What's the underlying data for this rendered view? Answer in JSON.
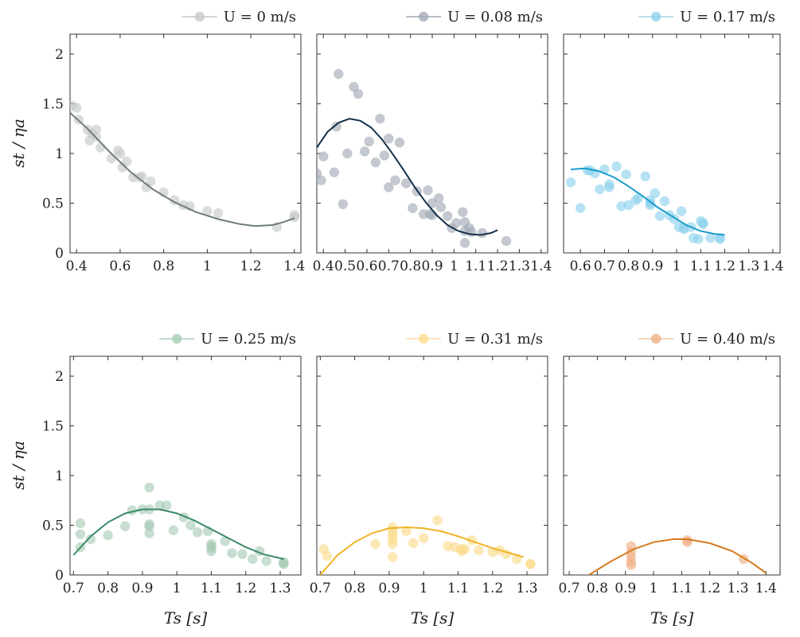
{
  "figure": {
    "ylabel": "st / ηa",
    "xlabel": "Ts [s]"
  },
  "chart_data": [
    {
      "type": "scatter",
      "legend": "U = 0 m/s",
      "color": "#c8cbcb",
      "line_color": "#6f7b7b",
      "xlim": [
        0.37,
        1.43
      ],
      "ylim": [
        0,
        2.2
      ],
      "xticks": [
        "0.4",
        "0.6",
        "0.8",
        "1",
        "1.2",
        "1.4"
      ],
      "xtick_values": [
        0.4,
        0.6,
        0.8,
        1.0,
        1.2,
        1.4
      ],
      "yticks": [
        "0",
        "0.5",
        "1",
        "1.5",
        "2"
      ],
      "ytick_values": [
        0,
        0.5,
        1,
        1.5,
        2
      ],
      "points": [
        [
          0.38,
          1.48
        ],
        [
          0.4,
          1.46
        ],
        [
          0.41,
          1.34
        ],
        [
          0.45,
          1.24
        ],
        [
          0.46,
          1.13
        ],
        [
          0.47,
          1.2
        ],
        [
          0.49,
          1.24
        ],
        [
          0.49,
          1.17
        ],
        [
          0.51,
          1.06
        ],
        [
          0.56,
          0.95
        ],
        [
          0.59,
          1.03
        ],
        [
          0.6,
          1.0
        ],
        [
          0.61,
          0.86
        ],
        [
          0.63,
          0.92
        ],
        [
          0.66,
          0.76
        ],
        [
          0.69,
          0.76
        ],
        [
          0.7,
          0.77
        ],
        [
          0.72,
          0.66
        ],
        [
          0.74,
          0.72
        ],
        [
          0.8,
          0.61
        ],
        [
          0.85,
          0.53
        ],
        [
          0.89,
          0.48
        ],
        [
          0.92,
          0.47
        ],
        [
          1.0,
          0.42
        ],
        [
          1.05,
          0.4
        ],
        [
          1.32,
          0.26
        ],
        [
          1.4,
          0.36
        ],
        [
          1.4,
          0.38
        ]
      ],
      "curve": [
        [
          0.37,
          1.41
        ],
        [
          0.45,
          1.25
        ],
        [
          0.55,
          1.02
        ],
        [
          0.65,
          0.81
        ],
        [
          0.75,
          0.64
        ],
        [
          0.85,
          0.51
        ],
        [
          0.95,
          0.41
        ],
        [
          1.05,
          0.34
        ],
        [
          1.15,
          0.29
        ],
        [
          1.22,
          0.27
        ],
        [
          1.3,
          0.28
        ],
        [
          1.35,
          0.31
        ],
        [
          1.4,
          0.35
        ]
      ]
    },
    {
      "type": "scatter",
      "legend": "U = 0.08 m/s",
      "color": "#a4abb7",
      "line_color": "#16304a",
      "xlim": [
        0.37,
        1.43
      ],
      "ylim": [
        0,
        2.2
      ],
      "xticks": [
        "0.4",
        "0.5",
        "0.6",
        "0.7",
        "0.8",
        "0.9",
        "1",
        "1.1",
        "1.2",
        "1.3",
        "1.4"
      ],
      "xtick_values": [
        0.4,
        0.5,
        0.6,
        0.7,
        0.8,
        0.9,
        1.0,
        1.1,
        1.2,
        1.3,
        1.4
      ],
      "yticks": [
        "0",
        "0.5",
        "1",
        "1.5",
        "2"
      ],
      "ytick_values": [
        0,
        0.5,
        1,
        1.5,
        2
      ],
      "points": [
        [
          0.37,
          0.8
        ],
        [
          0.39,
          0.73
        ],
        [
          0.4,
          0.97
        ],
        [
          0.45,
          0.81
        ],
        [
          0.46,
          1.27
        ],
        [
          0.47,
          1.8
        ],
        [
          0.49,
          0.49
        ],
        [
          0.51,
          1.0
        ],
        [
          0.54,
          1.67
        ],
        [
          0.56,
          1.6
        ],
        [
          0.59,
          1.02
        ],
        [
          0.61,
          1.12
        ],
        [
          0.64,
          0.91
        ],
        [
          0.66,
          1.35
        ],
        [
          0.68,
          0.98
        ],
        [
          0.7,
          1.15
        ],
        [
          0.7,
          0.66
        ],
        [
          0.73,
          0.73
        ],
        [
          0.75,
          1.11
        ],
        [
          0.78,
          0.7
        ],
        [
          0.81,
          0.45
        ],
        [
          0.83,
          0.62
        ],
        [
          0.86,
          0.39
        ],
        [
          0.88,
          0.63
        ],
        [
          0.89,
          0.39
        ],
        [
          0.9,
          0.38
        ],
        [
          0.9,
          0.5
        ],
        [
          0.93,
          0.55
        ],
        [
          0.94,
          0.46
        ],
        [
          0.97,
          0.37
        ],
        [
          0.99,
          0.25
        ],
        [
          1.01,
          0.3
        ],
        [
          1.04,
          0.41
        ],
        [
          1.05,
          0.31
        ],
        [
          1.05,
          0.1
        ],
        [
          1.05,
          0.22
        ],
        [
          1.07,
          0.25
        ],
        [
          1.08,
          0.21
        ],
        [
          1.13,
          0.2
        ],
        [
          1.24,
          0.12
        ]
      ],
      "curve": [
        [
          0.37,
          1.06
        ],
        [
          0.42,
          1.22
        ],
        [
          0.47,
          1.31
        ],
        [
          0.52,
          1.35
        ],
        [
          0.57,
          1.33
        ],
        [
          0.62,
          1.26
        ],
        [
          0.67,
          1.14
        ],
        [
          0.72,
          0.99
        ],
        [
          0.77,
          0.83
        ],
        [
          0.82,
          0.66
        ],
        [
          0.87,
          0.51
        ],
        [
          0.92,
          0.38
        ],
        [
          0.97,
          0.28
        ],
        [
          1.02,
          0.22
        ],
        [
          1.07,
          0.19
        ],
        [
          1.12,
          0.18
        ],
        [
          1.17,
          0.2
        ],
        [
          1.2,
          0.23
        ]
      ]
    },
    {
      "type": "scatter",
      "legend": "U = 0.17 m/s",
      "color": "#8fd3ec",
      "line_color": "#1a9ccc",
      "xlim": [
        0.53,
        1.43
      ],
      "ylim": [
        0,
        2.2
      ],
      "xticks": [
        "0.6",
        "0.7",
        "0.8",
        "0.9",
        "1",
        "1.1",
        "1.2",
        "1.3",
        "1.4"
      ],
      "xtick_values": [
        0.6,
        0.7,
        0.8,
        0.9,
        1.0,
        1.1,
        1.2,
        1.3,
        1.4
      ],
      "yticks": [
        "0",
        "0.5",
        "1",
        "1.5",
        "2"
      ],
      "ytick_values": [
        0,
        0.5,
        1,
        1.5,
        2
      ],
      "points": [
        [
          0.56,
          0.71
        ],
        [
          0.6,
          0.45
        ],
        [
          0.63,
          0.83
        ],
        [
          0.64,
          0.83
        ],
        [
          0.66,
          0.8
        ],
        [
          0.68,
          0.64
        ],
        [
          0.7,
          0.84
        ],
        [
          0.72,
          0.69
        ],
        [
          0.72,
          0.66
        ],
        [
          0.75,
          0.87
        ],
        [
          0.77,
          0.47
        ],
        [
          0.79,
          0.79
        ],
        [
          0.8,
          0.48
        ],
        [
          0.83,
          0.53
        ],
        [
          0.84,
          0.55
        ],
        [
          0.87,
          0.77
        ],
        [
          0.89,
          0.53
        ],
        [
          0.89,
          0.5
        ],
        [
          0.89,
          0.48
        ],
        [
          0.91,
          0.6
        ],
        [
          0.93,
          0.37
        ],
        [
          0.95,
          0.52
        ],
        [
          0.97,
          0.38
        ],
        [
          0.99,
          0.34
        ],
        [
          1.01,
          0.26
        ],
        [
          1.02,
          0.42
        ],
        [
          1.03,
          0.25
        ],
        [
          1.03,
          0.24
        ],
        [
          1.06,
          0.26
        ],
        [
          1.07,
          0.15
        ],
        [
          1.09,
          0.14
        ],
        [
          1.1,
          0.32
        ],
        [
          1.11,
          0.29
        ],
        [
          1.11,
          0.3
        ],
        [
          1.14,
          0.15
        ],
        [
          1.18,
          0.15
        ],
        [
          1.18,
          0.14
        ]
      ],
      "curve": [
        [
          0.56,
          0.84
        ],
        [
          0.62,
          0.85
        ],
        [
          0.68,
          0.82
        ],
        [
          0.74,
          0.76
        ],
        [
          0.8,
          0.67
        ],
        [
          0.86,
          0.57
        ],
        [
          0.92,
          0.46
        ],
        [
          0.98,
          0.37
        ],
        [
          1.04,
          0.28
        ],
        [
          1.1,
          0.22
        ],
        [
          1.16,
          0.19
        ],
        [
          1.2,
          0.18
        ]
      ]
    },
    {
      "type": "scatter",
      "legend": "U = 0.25 m/s",
      "color": "#a9cdb8",
      "line_color": "#3c8a66",
      "xlim": [
        0.69,
        1.36
      ],
      "ylim": [
        0,
        2.2
      ],
      "xticks": [
        "0.7",
        "0.8",
        "0.9",
        "1",
        "1.1",
        "1.2",
        "1.3"
      ],
      "xtick_values": [
        0.7,
        0.8,
        0.9,
        1.0,
        1.1,
        1.2,
        1.3
      ],
      "yticks": [
        "0",
        "0.5",
        "1",
        "1.5",
        "2"
      ],
      "ytick_values": [
        0,
        0.5,
        1,
        1.5,
        2
      ],
      "points": [
        [
          0.72,
          0.52
        ],
        [
          0.72,
          0.41
        ],
        [
          0.72,
          0.28
        ],
        [
          0.75,
          0.36
        ],
        [
          0.8,
          0.4
        ],
        [
          0.85,
          0.49
        ],
        [
          0.87,
          0.65
        ],
        [
          0.9,
          0.66
        ],
        [
          0.92,
          0.88
        ],
        [
          0.92,
          0.66
        ],
        [
          0.92,
          0.51
        ],
        [
          0.92,
          0.49
        ],
        [
          0.92,
          0.42
        ],
        [
          0.95,
          0.7
        ],
        [
          0.97,
          0.7
        ],
        [
          0.99,
          0.45
        ],
        [
          1.02,
          0.58
        ],
        [
          1.04,
          0.5
        ],
        [
          1.06,
          0.43
        ],
        [
          1.09,
          0.44
        ],
        [
          1.1,
          0.31
        ],
        [
          1.1,
          0.29
        ],
        [
          1.1,
          0.27
        ],
        [
          1.1,
          0.24
        ],
        [
          1.14,
          0.34
        ],
        [
          1.16,
          0.22
        ],
        [
          1.19,
          0.21
        ],
        [
          1.22,
          0.16
        ],
        [
          1.24,
          0.24
        ],
        [
          1.26,
          0.14
        ],
        [
          1.31,
          0.13
        ],
        [
          1.31,
          0.12
        ],
        [
          1.31,
          0.11
        ]
      ],
      "curve": [
        [
          0.7,
          0.2
        ],
        [
          0.75,
          0.39
        ],
        [
          0.8,
          0.53
        ],
        [
          0.85,
          0.62
        ],
        [
          0.9,
          0.66
        ],
        [
          0.95,
          0.66
        ],
        [
          1.0,
          0.62
        ],
        [
          1.05,
          0.55
        ],
        [
          1.1,
          0.46
        ],
        [
          1.15,
          0.37
        ],
        [
          1.2,
          0.28
        ],
        [
          1.25,
          0.21
        ],
        [
          1.31,
          0.16
        ]
      ]
    },
    {
      "type": "scatter",
      "legend": "U = 0.31 m/s",
      "color": "#fbdb8c",
      "line_color": "#f0b324",
      "xlim": [
        0.69,
        1.36
      ],
      "ylim": [
        0,
        2.2
      ],
      "xticks": [
        "0.7",
        "0.8",
        "0.9",
        "1",
        "1.1",
        "1.2",
        "1.3"
      ],
      "xtick_values": [
        0.7,
        0.8,
        0.9,
        1.0,
        1.1,
        1.2,
        1.3
      ],
      "yticks": [
        "0",
        "0.5",
        "1",
        "1.5",
        "2"
      ],
      "ytick_values": [
        0,
        0.5,
        1,
        1.5,
        2
      ],
      "points": [
        [
          0.71,
          0.26
        ],
        [
          0.72,
          0.19
        ],
        [
          0.86,
          0.31
        ],
        [
          0.91,
          0.48
        ],
        [
          0.91,
          0.44
        ],
        [
          0.91,
          0.4
        ],
        [
          0.91,
          0.36
        ],
        [
          0.91,
          0.31
        ],
        [
          0.91,
          0.18
        ],
        [
          0.95,
          0.44
        ],
        [
          0.97,
          0.32
        ],
        [
          1.0,
          0.37
        ],
        [
          1.04,
          0.55
        ],
        [
          1.07,
          0.29
        ],
        [
          1.09,
          0.28
        ],
        [
          1.11,
          0.26
        ],
        [
          1.11,
          0.24
        ],
        [
          1.12,
          0.26
        ],
        [
          1.14,
          0.35
        ],
        [
          1.16,
          0.25
        ],
        [
          1.2,
          0.23
        ],
        [
          1.22,
          0.25
        ],
        [
          1.24,
          0.21
        ],
        [
          1.27,
          0.16
        ],
        [
          1.31,
          0.11
        ],
        [
          1.31,
          0.11
        ]
      ],
      "curve": [
        [
          0.7,
          0.0
        ],
        [
          0.75,
          0.2
        ],
        [
          0.8,
          0.33
        ],
        [
          0.85,
          0.42
        ],
        [
          0.9,
          0.47
        ],
        [
          0.95,
          0.48
        ],
        [
          1.0,
          0.47
        ],
        [
          1.05,
          0.44
        ],
        [
          1.1,
          0.39
        ],
        [
          1.15,
          0.33
        ],
        [
          1.2,
          0.27
        ],
        [
          1.25,
          0.22
        ],
        [
          1.29,
          0.18
        ]
      ]
    },
    {
      "type": "scatter",
      "legend": "U = 0.40 m/s",
      "color": "#efb187",
      "line_color": "#d57b20",
      "xlim": [
        0.68,
        1.45
      ],
      "ylim": [
        0,
        2.2
      ],
      "xticks": [
        "0.7",
        "0.8",
        "0.9",
        "1",
        "1.1",
        "1.2",
        "1.3",
        "1.4"
      ],
      "xtick_values": [
        0.7,
        0.8,
        0.9,
        1.0,
        1.1,
        1.2,
        1.3,
        1.4
      ],
      "yticks": [
        "0",
        "0.5",
        "1",
        "1.5",
        "2"
      ],
      "ytick_values": [
        0,
        0.5,
        1,
        1.5,
        2
      ],
      "points": [
        [
          0.92,
          0.29
        ],
        [
          0.92,
          0.23
        ],
        [
          0.92,
          0.18
        ],
        [
          0.92,
          0.13
        ],
        [
          0.92,
          0.1
        ],
        [
          1.12,
          0.35
        ],
        [
          1.12,
          0.33
        ],
        [
          1.32,
          0.16
        ]
      ],
      "curve": [
        [
          0.77,
          0.0
        ],
        [
          0.85,
          0.14
        ],
        [
          0.93,
          0.26
        ],
        [
          1.0,
          0.33
        ],
        [
          1.07,
          0.36
        ],
        [
          1.12,
          0.36
        ],
        [
          1.2,
          0.32
        ],
        [
          1.28,
          0.24
        ],
        [
          1.35,
          0.12
        ],
        [
          1.4,
          0.02
        ]
      ]
    }
  ]
}
